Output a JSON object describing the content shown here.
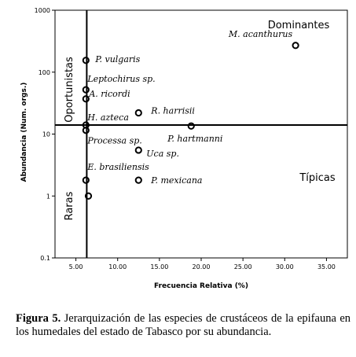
{
  "chart_data": {
    "type": "scatter",
    "xlabel": "Frecuencia Relativa (%)",
    "ylabel": "Abundancia (Num. orgs.)",
    "x_scale": "linear",
    "y_scale": "log",
    "xlim": [
      2.5,
      37.5
    ],
    "ylim": [
      0.1,
      1000
    ],
    "x_ticks": [
      "5.00",
      "10.00",
      "15.00",
      "20.00",
      "25.00",
      "30.00",
      "35.00"
    ],
    "y_ticks": [
      "0.1",
      "1",
      "10",
      "100",
      "1000"
    ],
    "reference_lines": {
      "x": 6.3,
      "y": 14
    },
    "quadrant_labels": {
      "top_left": "Oportunistas",
      "top_right": "Dominantes",
      "bottom_left": "Raras",
      "bottom_right": "Típicas"
    },
    "points": [
      {
        "label": "M. acanthurus",
        "x": 31.3,
        "y": 270
      },
      {
        "label": "P. vulgaris",
        "x": 6.2,
        "y": 155
      },
      {
        "label": "Leptochirus sp.",
        "x": 6.2,
        "y": 52
      },
      {
        "label": "A. ricordi",
        "x": 6.2,
        "y": 37
      },
      {
        "label": "R. harrisii",
        "x": 12.5,
        "y": 22
      },
      {
        "label": "H. azteca",
        "x": 6.2,
        "y": 14
      },
      {
        "label": "Processa sp.",
        "x": 6.2,
        "y": 11.5
      },
      {
        "label": "P. hartmanni",
        "x": 18.8,
        "y": 13.5
      },
      {
        "label": "Uca sp.",
        "x": 12.5,
        "y": 5.5
      },
      {
        "label": "E. brasiliensis",
        "x": 6.2,
        "y": 1.8
      },
      {
        "label": "P. mexicana",
        "x": 12.5,
        "y": 1.8
      },
      {
        "label": "",
        "x": 6.5,
        "y": 1
      }
    ]
  },
  "caption": {
    "prefix": "Figura 5.",
    "text": "Jerarquización de las especies de crustáceos de la epifauna en los humedales del estado de Tabasco por su abundancia."
  }
}
